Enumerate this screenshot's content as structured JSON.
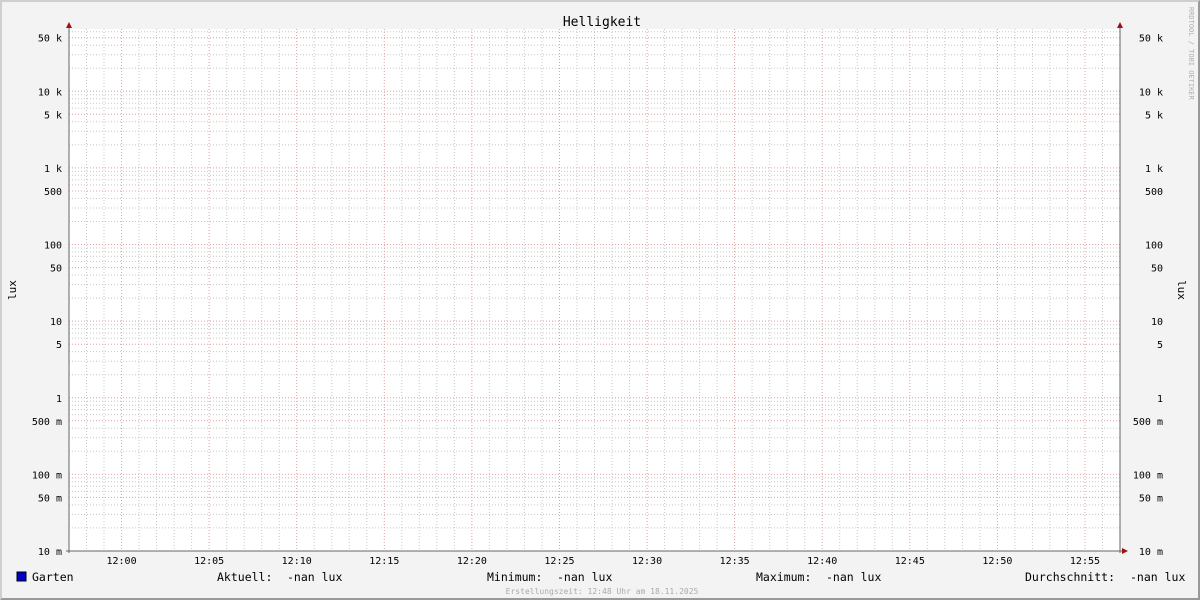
{
  "chart_data": {
    "type": "line",
    "title": "Helligkeit",
    "ylabel": "lux",
    "ylabel_right": "lux",
    "yscale": "log",
    "ylim": [
      0.01,
      65000
    ],
    "xlim": [
      "11:57",
      "12:57"
    ],
    "grid": true,
    "y_ticks": [
      {
        "value": 50000,
        "label": "50 k"
      },
      {
        "value": 10000,
        "label": "10 k"
      },
      {
        "value": 5000,
        "label": "5 k"
      },
      {
        "value": 1000,
        "label": "1 k"
      },
      {
        "value": 500,
        "label": "500"
      },
      {
        "value": 100,
        "label": "100"
      },
      {
        "value": 50,
        "label": "50"
      },
      {
        "value": 10,
        "label": "10"
      },
      {
        "value": 5,
        "label": "5"
      },
      {
        "value": 1,
        "label": "1"
      },
      {
        "value": 0.5,
        "label": "500 m"
      },
      {
        "value": 0.1,
        "label": "100 m"
      },
      {
        "value": 0.05,
        "label": "50 m"
      },
      {
        "value": 0.01,
        "label": "10 m"
      }
    ],
    "x_ticks": [
      "12:00",
      "12:05",
      "12:10",
      "12:15",
      "12:20",
      "12:25",
      "12:30",
      "12:35",
      "12:40",
      "12:45",
      "12:50",
      "12:55"
    ],
    "series": [
      {
        "name": "Garten",
        "color": "#0000cc",
        "values": []
      }
    ],
    "legend": {
      "placement": "bottom",
      "series_label": "Garten",
      "stats": [
        {
          "label": "Aktuell:",
          "value": "-nan lux"
        },
        {
          "label": "Minimum:",
          "value": "-nan lux"
        },
        {
          "label": "Maximum:",
          "value": "-nan lux"
        },
        {
          "label": "Durchschnitt:",
          "value": "-nan lux"
        }
      ]
    },
    "footer": "Erstellungszeit: 12:48 Uhr am 18.11.2025",
    "watermark": "RRDTOOL / TOBI OETIKER",
    "colors": {
      "major_grid": "#e0a0a0",
      "minor_grid": "#c8c8c8",
      "axis": "#666666",
      "arrow": "#a01010"
    }
  }
}
